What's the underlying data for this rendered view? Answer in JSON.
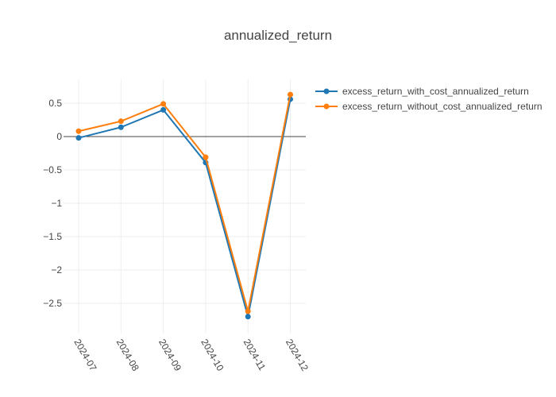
{
  "chart_data": {
    "type": "line",
    "title": "annualized_return",
    "xlabel": "",
    "ylabel": "",
    "categories": [
      "2024-07",
      "2024-08",
      "2024-09",
      "2024-10",
      "2024-11",
      "2024-12"
    ],
    "series": [
      {
        "name": "excess_return_with_cost_annualized_return",
        "color": "#1f77b4",
        "values": [
          -0.02,
          0.14,
          0.4,
          -0.39,
          -2.7,
          0.56
        ]
      },
      {
        "name": "excess_return_without_cost_annualized_return",
        "color": "#ff7f0e",
        "values": [
          0.08,
          0.23,
          0.49,
          -0.31,
          -2.62,
          0.63
        ]
      }
    ],
    "yticks": [
      0.5,
      0,
      -0.5,
      -1,
      -1.5,
      -2,
      -2.5
    ],
    "ytick_labels": [
      "0.5",
      "0",
      "−0.5",
      "−1",
      "−1.5",
      "−2",
      "−2.5"
    ],
    "ylim": [
      -2.95,
      0.85
    ],
    "grid": true,
    "legend_position": "top-right"
  }
}
